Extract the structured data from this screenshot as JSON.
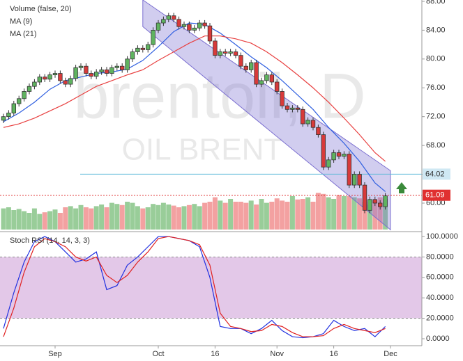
{
  "chart_data": {
    "type": "candlestick",
    "watermark": "brentoil, D",
    "watermark_subtitle": "OIL BRENT",
    "up_color": "#7fc07f",
    "down_color": "#f08a8a",
    "xlim": [
      -0.676,
      81.08
    ],
    "xticks": [
      {
        "value": 10,
        "label": "Sep"
      },
      {
        "value": 30,
        "label": "Oct"
      },
      {
        "value": 41,
        "label": "16"
      },
      {
        "value": 53,
        "label": "Nov"
      },
      {
        "value": 64,
        "label": "16"
      },
      {
        "value": 75,
        "label": "Dec"
      }
    ],
    "ylim": [
      56.33,
      88.19
    ],
    "yticks": [
      {
        "value": 60,
        "label": "60.00"
      },
      {
        "value": 64,
        "label": "64.00"
      },
      {
        "value": 68,
        "label": "68.00"
      },
      {
        "value": 72,
        "label": "72.00"
      },
      {
        "value": 76,
        "label": "76.00"
      },
      {
        "value": 80,
        "label": "80.00"
      },
      {
        "value": 84,
        "label": "84.00"
      },
      {
        "value": 88,
        "label": "88.00"
      }
    ],
    "open": [
      71.5,
      72.0,
      72.5,
      73.8,
      74.5,
      75.5,
      76.2,
      76.8,
      77.5,
      77.2,
      77.8,
      78.0,
      77.0,
      76.5,
      77.3,
      78.8,
      79.0,
      78.0,
      77.6,
      78.2,
      78.5,
      78.0,
      78.8,
      79.0,
      78.5,
      80.0,
      81.0,
      81.5,
      81.3,
      82.0,
      84.0,
      85.0,
      85.5,
      86.0,
      85.5,
      84.5,
      84.8,
      84.0,
      84.3,
      85.0,
      84.6,
      82.5,
      80.5,
      81.0,
      80.8,
      81.0,
      80.5,
      79.0,
      78.5,
      79.5,
      76.5,
      77.0,
      77.8,
      76.8,
      75.5,
      73.5,
      73.0,
      73.2,
      73.0,
      71.0,
      71.5,
      70.5,
      69.5,
      65.0,
      66.0,
      67.0,
      66.5,
      66.8,
      62.5,
      64.0,
      62.5,
      59.0,
      60.5,
      60.0,
      59.5
    ],
    "high": [
      72.4,
      72.9,
      74.2,
      74.9,
      75.9,
      76.6,
      77.2,
      77.9,
      77.9,
      78.2,
      78.4,
      78.4,
      77.4,
      77.7,
      79.2,
      79.4,
      79.4,
      78.4,
      78.6,
      78.9,
      78.9,
      79.2,
      79.4,
      79.4,
      80.4,
      81.4,
      81.9,
      81.9,
      82.4,
      84.4,
      85.4,
      85.9,
      86.4,
      86.4,
      85.9,
      85.2,
      85.2,
      84.7,
      85.4,
      85.4,
      85.0,
      82.9,
      81.4,
      81.4,
      81.4,
      81.4,
      80.9,
      79.4,
      79.9,
      79.9,
      77.4,
      78.2,
      78.2,
      77.2,
      75.9,
      73.9,
      73.6,
      73.6,
      73.4,
      71.9,
      71.9,
      70.9,
      69.9,
      66.4,
      67.4,
      67.4,
      67.2,
      67.2,
      64.4,
      64.4,
      62.9,
      60.9,
      60.9,
      60.4,
      61.4
    ],
    "low": [
      71.1,
      71.6,
      72.1,
      73.4,
      74.1,
      75.1,
      75.8,
      76.4,
      76.8,
      76.8,
      77.4,
      76.6,
      76.1,
      76.1,
      76.9,
      78.4,
      77.6,
      77.2,
      77.2,
      77.8,
      77.6,
      77.6,
      78.4,
      78.1,
      78.1,
      79.6,
      80.6,
      80.9,
      80.9,
      81.6,
      83.6,
      84.6,
      85.1,
      85.1,
      84.1,
      84.1,
      83.6,
      83.6,
      83.9,
      84.2,
      82.1,
      80.1,
      80.1,
      80.4,
      80.4,
      80.1,
      78.6,
      78.1,
      78.1,
      76.1,
      76.1,
      76.6,
      76.4,
      75.1,
      73.1,
      72.6,
      72.6,
      72.6,
      70.6,
      70.6,
      70.1,
      69.1,
      64.6,
      64.6,
      65.6,
      66.1,
      66.1,
      62.1,
      62.1,
      62.1,
      58.6,
      58.6,
      59.6,
      59.1,
      59.1
    ],
    "close": [
      72.0,
      72.5,
      73.8,
      74.5,
      75.5,
      76.2,
      76.8,
      77.5,
      77.2,
      77.8,
      78.0,
      77.0,
      76.5,
      77.3,
      78.8,
      79.0,
      78.0,
      77.6,
      78.2,
      78.5,
      78.0,
      78.8,
      79.0,
      78.5,
      80.0,
      81.0,
      81.5,
      81.3,
      82.0,
      84.0,
      85.0,
      85.5,
      86.0,
      85.5,
      84.5,
      84.8,
      84.0,
      84.3,
      85.0,
      84.6,
      82.5,
      80.5,
      81.0,
      80.8,
      81.0,
      80.5,
      79.0,
      78.5,
      79.5,
      76.5,
      77.0,
      77.8,
      76.8,
      75.5,
      73.5,
      73.0,
      73.2,
      73.0,
      71.0,
      71.5,
      70.5,
      69.5,
      65.0,
      66.0,
      67.0,
      66.5,
      66.8,
      62.5,
      64.0,
      62.5,
      59.0,
      60.5,
      60.0,
      59.5,
      61.0
    ],
    "volume": {
      "name": "Volume (false, 20)",
      "ylim": [
        0,
        100
      ],
      "values": [
        38,
        40,
        35,
        37,
        33,
        30,
        38,
        28,
        31,
        33,
        36,
        30,
        40,
        42,
        38,
        44,
        40,
        38,
        42,
        45,
        40,
        48,
        46,
        44,
        50,
        48,
        42,
        38,
        40,
        46,
        44,
        48,
        45,
        43,
        40,
        42,
        44,
        46,
        42,
        48,
        50,
        58,
        52,
        48,
        55,
        50,
        50,
        48,
        52,
        45,
        55,
        48,
        50,
        56,
        52,
        50,
        60,
        54,
        55,
        58,
        50,
        66,
        64,
        58,
        55,
        62,
        60,
        60,
        58,
        56,
        50,
        45,
        52,
        58,
        55
      ]
    },
    "series": [
      {
        "name": "MA (9)",
        "color": "#2f5fe0",
        "x": [
          0,
          3,
          6,
          9,
          12,
          15,
          18,
          21,
          24,
          27,
          30,
          33,
          36,
          39,
          42,
          45,
          48,
          51,
          54,
          57,
          60,
          63,
          66,
          69,
          72,
          74
        ],
        "values": [
          71.3,
          72.5,
          74.0,
          75.8,
          77.0,
          77.5,
          78.0,
          78.2,
          78.6,
          79.8,
          81.7,
          83.8,
          85.0,
          84.8,
          83.6,
          82.0,
          80.3,
          78.8,
          77.0,
          75.0,
          73.0,
          70.5,
          68.3,
          65.8,
          62.8,
          61.6
        ]
      },
      {
        "name": "MA (21)",
        "color": "#e84040",
        "x": [
          0,
          3,
          6,
          9,
          12,
          15,
          18,
          21,
          24,
          27,
          30,
          33,
          36,
          39,
          42,
          45,
          48,
          51,
          54,
          57,
          60,
          63,
          66,
          69,
          72,
          74
        ],
        "values": [
          70.5,
          71.0,
          71.8,
          72.8,
          73.8,
          75.0,
          76.2,
          77.0,
          77.8,
          78.5,
          79.8,
          81.0,
          82.2,
          83.2,
          83.2,
          82.8,
          82.2,
          81.0,
          79.5,
          77.8,
          76.0,
          74.0,
          71.8,
          69.5,
          67.0,
          65.8
        ]
      }
    ],
    "channel": {
      "color": "#7b6fd0",
      "upper": [
        [
          27,
          88.2
        ],
        [
          75,
          64.5
        ]
      ],
      "lower": [
        [
          27,
          84.5
        ],
        [
          75,
          56.3
        ]
      ]
    },
    "price_lines": [
      {
        "value": 64.02,
        "color": "#5bb8d8"
      },
      {
        "value": 61.09,
        "color": "#e03030"
      }
    ],
    "oscillator": {
      "title": "Stoch RSI (14, 14, 3, 3)",
      "ylim": [
        -6.8,
        104.8
      ],
      "yticks": [
        {
          "value": 0,
          "label": "0.0000"
        },
        {
          "value": 20,
          "label": "20.0000"
        },
        {
          "value": 40,
          "label": "40.0000"
        },
        {
          "value": 60,
          "label": "60.0000"
        },
        {
          "value": 80,
          "label": "80.0000"
        },
        {
          "value": 100,
          "label": "100.0000"
        }
      ],
      "band": [
        20,
        80
      ],
      "series": [
        {
          "color": "#2030e0",
          "x": [
            0,
            2,
            4,
            6,
            8,
            10,
            12,
            14,
            16,
            18,
            20,
            22,
            24,
            26,
            28,
            30,
            32,
            34,
            36,
            38,
            40,
            42,
            44,
            46,
            48,
            50,
            52,
            54,
            56,
            58,
            60,
            62,
            64,
            66,
            68,
            70,
            72,
            74
          ],
          "values": [
            10,
            45,
            75,
            95,
            100,
            95,
            85,
            75,
            78,
            85,
            48,
            52,
            72,
            80,
            90,
            100,
            100,
            98,
            96,
            90,
            60,
            12,
            10,
            10,
            5,
            10,
            18,
            8,
            2,
            1,
            2,
            5,
            18,
            12,
            8,
            10,
            2,
            12
          ]
        },
        {
          "color": "#e02020",
          "x": [
            0,
            2,
            4,
            6,
            8,
            10,
            12,
            14,
            16,
            18,
            20,
            22,
            24,
            26,
            28,
            30,
            32,
            34,
            36,
            38,
            40,
            42,
            44,
            46,
            48,
            50,
            52,
            54,
            56,
            58,
            60,
            62,
            64,
            66,
            68,
            70,
            72,
            74
          ],
          "values": [
            2,
            30,
            65,
            90,
            98,
            95,
            90,
            80,
            76,
            80,
            62,
            55,
            62,
            75,
            85,
            98,
            100,
            98,
            96,
            92,
            72,
            25,
            12,
            10,
            7,
            8,
            14,
            12,
            6,
            2,
            2,
            3,
            10,
            14,
            10,
            8,
            6,
            10
          ]
        }
      ]
    }
  }
}
